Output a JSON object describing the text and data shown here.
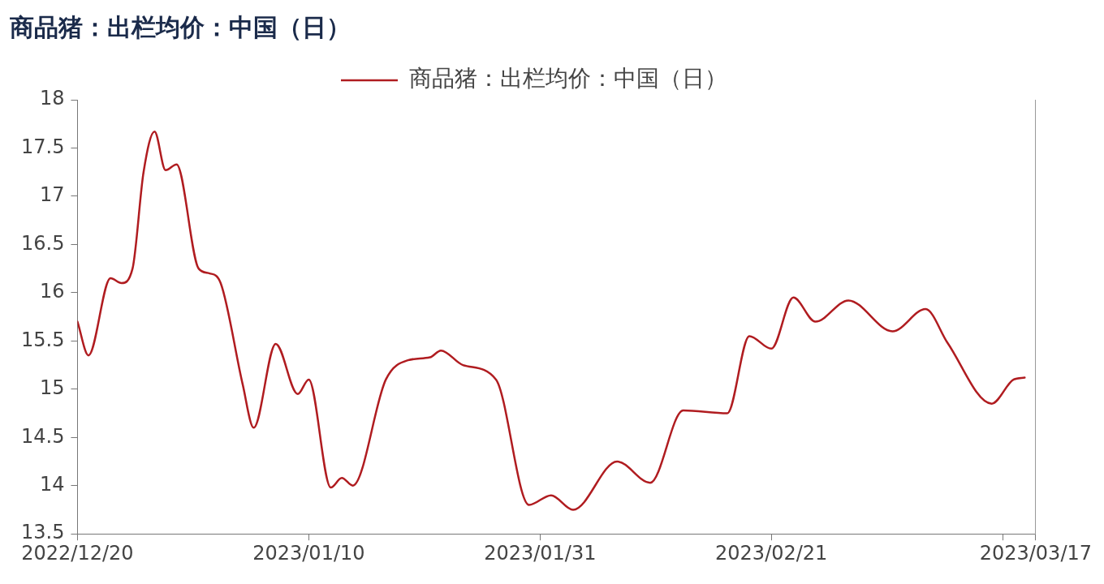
{
  "chart_data": {
    "type": "line",
    "title": "商品猪：出栏均价：中国（日）",
    "x": [
      "2022-12-20",
      "2022-12-21",
      "2022-12-23",
      "2022-12-24",
      "2022-12-25",
      "2022-12-26",
      "2022-12-27",
      "2022-12-28",
      "2022-12-29",
      "2022-12-31",
      "2023-01-01",
      "2023-01-02",
      "2023-01-04",
      "2023-01-05",
      "2023-01-07",
      "2023-01-09",
      "2023-01-10",
      "2023-01-12",
      "2023-01-13",
      "2023-01-14",
      "2023-01-17",
      "2023-01-19",
      "2023-01-21",
      "2023-01-22",
      "2023-01-24",
      "2023-01-27",
      "2023-01-30",
      "2023-02-01",
      "2023-02-03",
      "2023-02-07",
      "2023-02-10",
      "2023-02-13",
      "2023-02-17",
      "2023-02-19",
      "2023-02-21",
      "2023-02-23",
      "2023-02-25",
      "2023-02-28",
      "2023-03-04",
      "2023-03-07",
      "2023-03-09",
      "2023-03-13",
      "2023-03-15",
      "2023-03-16"
    ],
    "series": [
      {
        "name": "商品猪：出栏均价：中国（日）",
        "color": "#b01c20",
        "values": [
          15.7,
          15.35,
          16.15,
          16.1,
          16.25,
          17.25,
          17.67,
          17.27,
          17.33,
          16.25,
          16.2,
          16.1,
          15.05,
          14.6,
          15.47,
          14.95,
          15.1,
          13.98,
          14.08,
          14.0,
          15.1,
          15.3,
          15.33,
          15.4,
          15.25,
          15.1,
          13.8,
          13.9,
          13.75,
          14.25,
          14.03,
          14.78,
          14.75,
          15.55,
          15.42,
          15.95,
          15.7,
          15.92,
          15.6,
          15.83,
          15.48,
          14.85,
          15.1,
          15.12
        ]
      }
    ],
    "xlim": [
      "2022-12-20",
      "2023-03-17"
    ],
    "xticks": [
      {
        "value": "2022-12-20",
        "label": "2022/12/20"
      },
      {
        "value": "2023-01-10",
        "label": "2023/01/10"
      },
      {
        "value": "2023-01-31",
        "label": "2023/01/31"
      },
      {
        "value": "2023-02-21",
        "label": "2023/02/21"
      },
      {
        "value": "2023-03-14",
        "label": null
      },
      {
        "value": "2023-03-17",
        "label": "2023/03/17"
      }
    ],
    "ylim": [
      13.5,
      18
    ],
    "yticks": [
      13.5,
      14,
      14.5,
      15,
      15.5,
      16,
      16.5,
      17,
      17.5,
      18
    ],
    "grid": false,
    "legend": "top",
    "marker": "none",
    "line_style": "solid"
  }
}
